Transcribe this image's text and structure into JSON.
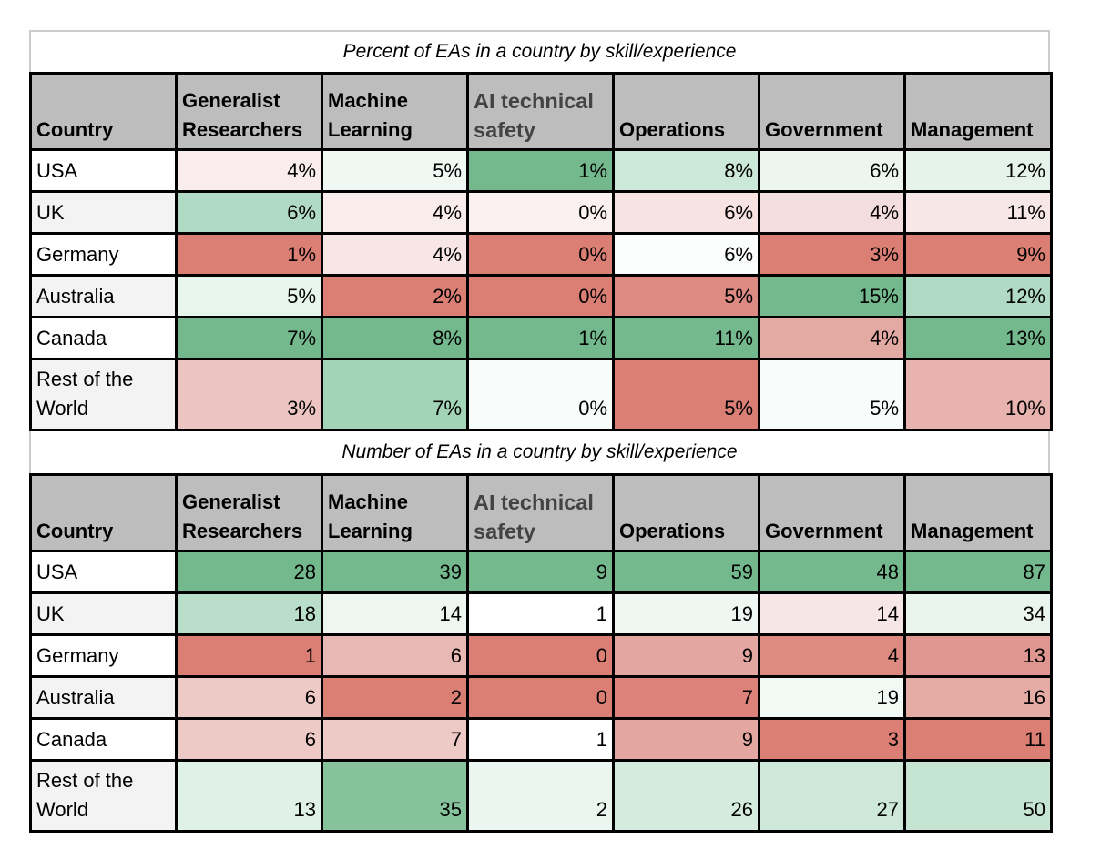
{
  "tables": [
    {
      "title": "Percent of EAs in a country by skill/experience",
      "headers": {
        "country": "Country",
        "columns": [
          {
            "line1": "Generalist",
            "line2": "Researchers",
            "dim": false
          },
          {
            "line1": "Machine",
            "line2": "Learning",
            "dim": false
          },
          {
            "line1": "AI technical",
            "line2": "safety",
            "dim": true
          },
          {
            "line1": "",
            "line2": "Operations",
            "dim": false
          },
          {
            "line1": "",
            "line2": "Government",
            "dim": false
          },
          {
            "line1": "",
            "line2": "Management",
            "dim": false
          }
        ]
      },
      "rows": [
        {
          "country": "USA",
          "country_line2": "",
          "bg": "#ffffff",
          "cells": [
            {
              "value": "4%",
              "color": "#f9ecec"
            },
            {
              "value": "5%",
              "color": "#eff8f2"
            },
            {
              "value": "1%",
              "color": "#73b98d"
            },
            {
              "value": "8%",
              "color": "#cce8d8"
            },
            {
              "value": "6%",
              "color": "#ecf6ef"
            },
            {
              "value": "12%",
              "color": "#e6f3ea"
            }
          ]
        },
        {
          "country": "UK",
          "country_line2": "",
          "bg": "#f3f3f3",
          "cells": [
            {
              "value": "6%",
              "color": "#b0dac4"
            },
            {
              "value": "4%",
              "color": "#f9edec"
            },
            {
              "value": "0%",
              "color": "#fbf1f0"
            },
            {
              "value": "6%",
              "color": "#f6e3e2"
            },
            {
              "value": "4%",
              "color": "#f4dedd"
            },
            {
              "value": "11%",
              "color": "#f7e8e7"
            }
          ]
        },
        {
          "country": "Germany",
          "country_line2": "",
          "bg": "#ffffff",
          "cells": [
            {
              "value": "1%",
              "color": "#db7f75"
            },
            {
              "value": "4%",
              "color": "#f7e6e5"
            },
            {
              "value": "0%",
              "color": "#db7f75"
            },
            {
              "value": "6%",
              "color": "#fbfdfc"
            },
            {
              "value": "3%",
              "color": "#db7f75"
            },
            {
              "value": "9%",
              "color": "#db7f75"
            }
          ]
        },
        {
          "country": "Australia",
          "country_line2": "",
          "bg": "#f3f3f3",
          "cells": [
            {
              "value": "5%",
              "color": "#e8f5ed"
            },
            {
              "value": "2%",
              "color": "#db7f75"
            },
            {
              "value": "0%",
              "color": "#db7f75"
            },
            {
              "value": "5%",
              "color": "#dd8a82"
            },
            {
              "value": "15%",
              "color": "#73b98d"
            },
            {
              "value": "12%",
              "color": "#b0dac4"
            }
          ]
        },
        {
          "country": "Canada",
          "country_line2": "",
          "bg": "#ffffff",
          "cells": [
            {
              "value": "7%",
              "color": "#73b98d"
            },
            {
              "value": "8%",
              "color": "#73b98d"
            },
            {
              "value": "1%",
              "color": "#73b98d"
            },
            {
              "value": "11%",
              "color": "#73b98d"
            },
            {
              "value": "4%",
              "color": "#e3a9a3"
            },
            {
              "value": "13%",
              "color": "#73b98d"
            }
          ]
        },
        {
          "country": "Rest of the",
          "country_line2": "World",
          "bg": "#f3f3f3",
          "cells": [
            {
              "value": "3%",
              "color": "#ecc5c2"
            },
            {
              "value": "7%",
              "color": "#a3d4b7"
            },
            {
              "value": "0%",
              "color": "#f8fcfa"
            },
            {
              "value": "5%",
              "color": "#db7f75"
            },
            {
              "value": "5%",
              "color": "#f8fcfa"
            },
            {
              "value": "10%",
              "color": "#e8b3ae"
            }
          ]
        }
      ]
    },
    {
      "title": "Number of EAs in a country by skill/experience",
      "headers": {
        "country": "Country",
        "columns": [
          {
            "line1": "Generalist",
            "line2": "Researchers",
            "dim": false
          },
          {
            "line1": "Machine",
            "line2": "Learning",
            "dim": false
          },
          {
            "line1": "AI technical",
            "line2": "safety",
            "dim": true
          },
          {
            "line1": "",
            "line2": "Operations",
            "dim": false
          },
          {
            "line1": "",
            "line2": "Government",
            "dim": false
          },
          {
            "line1": "",
            "line2": "Management",
            "dim": false
          }
        ]
      },
      "rows": [
        {
          "country": "USA",
          "country_line2": "",
          "bg": "#ffffff",
          "cells": [
            {
              "value": "28",
              "color": "#73b98d"
            },
            {
              "value": "39",
              "color": "#73b98d"
            },
            {
              "value": "9",
              "color": "#73b98d"
            },
            {
              "value": "59",
              "color": "#73b98d"
            },
            {
              "value": "48",
              "color": "#73b98d"
            },
            {
              "value": "87",
              "color": "#73b98d"
            }
          ]
        },
        {
          "country": "UK",
          "country_line2": "",
          "bg": "#f3f3f3",
          "cells": [
            {
              "value": "18",
              "color": "#b9dfcb"
            },
            {
              "value": "14",
              "color": "#edf7f0"
            },
            {
              "value": "1",
              "color": "#ffffff"
            },
            {
              "value": "19",
              "color": "#eef7f1"
            },
            {
              "value": "14",
              "color": "#f7e6e6"
            },
            {
              "value": "34",
              "color": "#e9f5ed"
            }
          ]
        },
        {
          "country": "Germany",
          "country_line2": "",
          "bg": "#ffffff",
          "cells": [
            {
              "value": "1",
              "color": "#db7f75"
            },
            {
              "value": "6",
              "color": "#e8b9b4"
            },
            {
              "value": "0",
              "color": "#db7f75"
            },
            {
              "value": "9",
              "color": "#e4a6a0"
            },
            {
              "value": "4",
              "color": "#dd8a81"
            },
            {
              "value": "13",
              "color": "#e09690"
            }
          ]
        },
        {
          "country": "Australia",
          "country_line2": "",
          "bg": "#f3f3f3",
          "cells": [
            {
              "value": "6",
              "color": "#eecac7"
            },
            {
              "value": "2",
              "color": "#db7f75"
            },
            {
              "value": "0",
              "color": "#db7f75"
            },
            {
              "value": "7",
              "color": "#dc827a"
            },
            {
              "value": "19",
              "color": "#f1f9f4"
            },
            {
              "value": "16",
              "color": "#e5aca6"
            }
          ]
        },
        {
          "country": "Canada",
          "country_line2": "",
          "bg": "#ffffff",
          "cells": [
            {
              "value": "6",
              "color": "#eecac7"
            },
            {
              "value": "7",
              "color": "#eecac7"
            },
            {
              "value": "1",
              "color": "#ffffff"
            },
            {
              "value": "9",
              "color": "#e4a6a0"
            },
            {
              "value": "3",
              "color": "#db7f75"
            },
            {
              "value": "11",
              "color": "#db7f75"
            }
          ]
        },
        {
          "country": "Rest of the",
          "country_line2": "World",
          "bg": "#f3f3f3",
          "cells": [
            {
              "value": "13",
              "color": "#e0f2e7"
            },
            {
              "value": "35",
              "color": "#86c39d"
            },
            {
              "value": "2",
              "color": "#ecf6f0"
            },
            {
              "value": "26",
              "color": "#d5ebde"
            },
            {
              "value": "27",
              "color": "#cde8d8"
            },
            {
              "value": "50",
              "color": "#c5e4d1"
            }
          ]
        }
      ]
    }
  ]
}
